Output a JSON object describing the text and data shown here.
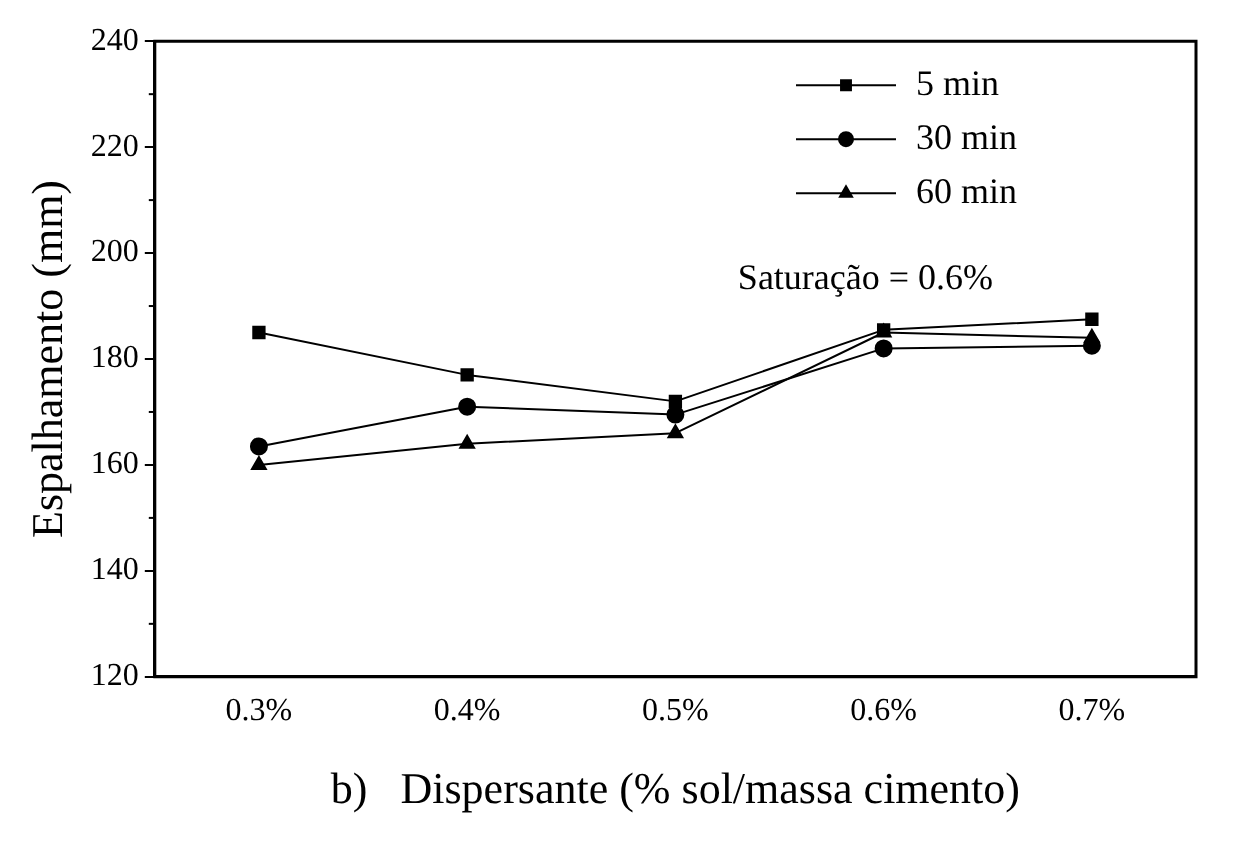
{
  "chart_data": {
    "type": "line",
    "xlabel": "b)   Dispersante (% sol/massa cimento)",
    "ylabel": "Espalhamento (mm)",
    "categories": [
      "0.3%",
      "0.4%",
      "0.5%",
      "0.6%",
      "0.7%"
    ],
    "series": [
      {
        "name": "5 min",
        "color": "#000000",
        "marker": "square",
        "values": [
          185,
          177,
          172,
          185.5,
          187.5
        ]
      },
      {
        "name": "30 min",
        "color": "#000000",
        "marker": "circle",
        "values": [
          163.5,
          171,
          169.5,
          182,
          182.5
        ]
      },
      {
        "name": "60 min",
        "color": "#000000",
        "marker": "triangle",
        "values": [
          160,
          164,
          166,
          185,
          184
        ]
      }
    ],
    "ylim": [
      120,
      240
    ],
    "yticks": [
      120,
      140,
      160,
      180,
      200,
      220,
      240
    ],
    "grid": false,
    "legend": "top right",
    "line_style": "solid",
    "annotations": [
      "Saturação = 0.6%"
    ]
  }
}
